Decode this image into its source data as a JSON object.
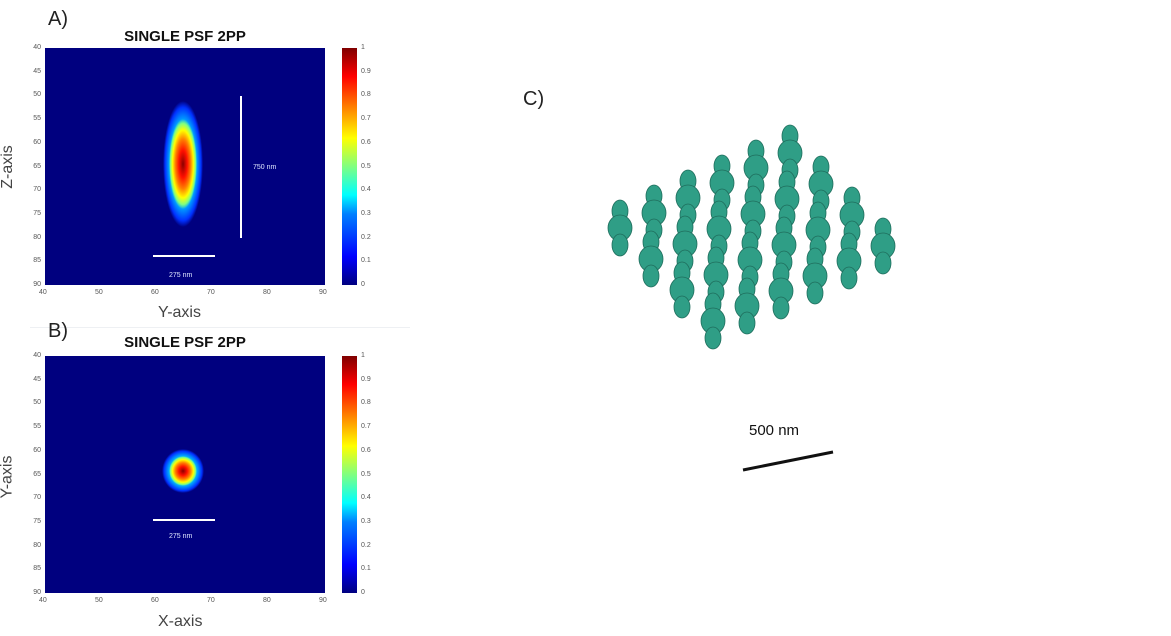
{
  "panels": {
    "a": {
      "letter": "A)",
      "title": "SINGLE PSF 2PP",
      "xlabel": "Y-axis",
      "ylabel": "Z-axis",
      "y_ticks": [
        "40",
        "45",
        "50",
        "55",
        "60",
        "65",
        "70",
        "75",
        "80",
        "85",
        "90"
      ],
      "x_ticks": [
        "40",
        "50",
        "60",
        "70",
        "80",
        "90"
      ],
      "cbar_ticks": [
        "1",
        "0.9",
        "0.8",
        "0.7",
        "0.6",
        "0.5",
        "0.4",
        "0.3",
        "0.2",
        "0.1",
        "0"
      ],
      "scale_vertical": "750 nm",
      "scale_horizontal": "275 nm"
    },
    "b": {
      "letter": "B)",
      "title": "SINGLE PSF 2PP",
      "xlabel": "X-axis",
      "ylabel": "Y-axis",
      "y_ticks": [
        "40",
        "45",
        "50",
        "55",
        "60",
        "65",
        "70",
        "75",
        "80",
        "85",
        "90"
      ],
      "x_ticks": [
        "40",
        "50",
        "60",
        "70",
        "80",
        "90"
      ],
      "cbar_ticks": [
        "1",
        "0.9",
        "0.8",
        "0.7",
        "0.6",
        "0.5",
        "0.4",
        "0.3",
        "0.2",
        "0.1",
        "0"
      ],
      "scale_horizontal": "275 nm"
    },
    "c": {
      "letter": "C)",
      "scale_label": "500 nm",
      "voxel_color": "#2f9e86"
    }
  }
}
